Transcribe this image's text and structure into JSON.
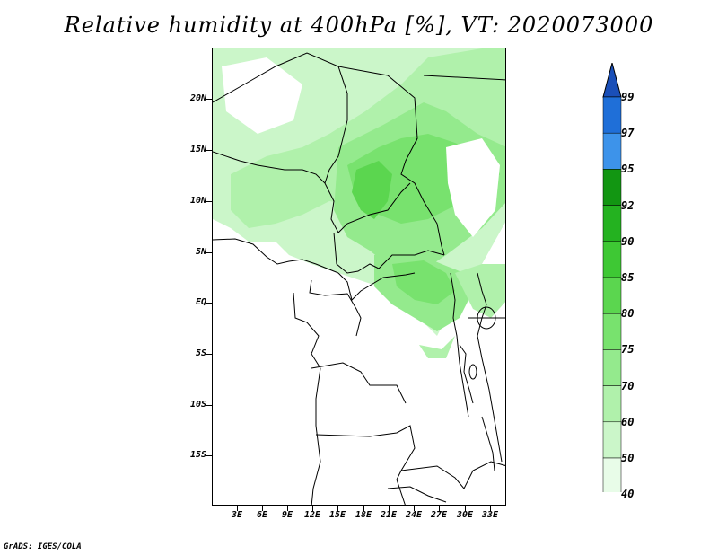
{
  "title": "Relative humidity at 400hPa [%], VT: 2020073000",
  "credit": "GrADS: IGES/COLA",
  "lat_labels": [
    "20N",
    "15N",
    "10N",
    "5N",
    "EQ",
    "5S",
    "10S",
    "15S"
  ],
  "lon_labels": [
    "3E",
    "6E",
    "9E",
    "12E",
    "15E",
    "18E",
    "21E",
    "24E",
    "27E",
    "30E",
    "33E"
  ],
  "colorbar": {
    "levels": [
      "40",
      "50",
      "60",
      "70",
      "75",
      "80",
      "85",
      "90",
      "92",
      "95",
      "97",
      "99"
    ],
    "colors": [
      "#ffffff",
      "#e8fce8",
      "#cbf6c9",
      "#b0f1ab",
      "#94ea8d",
      "#78e26e",
      "#5bd64f",
      "#3ec834",
      "#24b220",
      "#129612",
      "#3d93ea",
      "#1f6fd8",
      "#1a4fb8"
    ]
  }
}
